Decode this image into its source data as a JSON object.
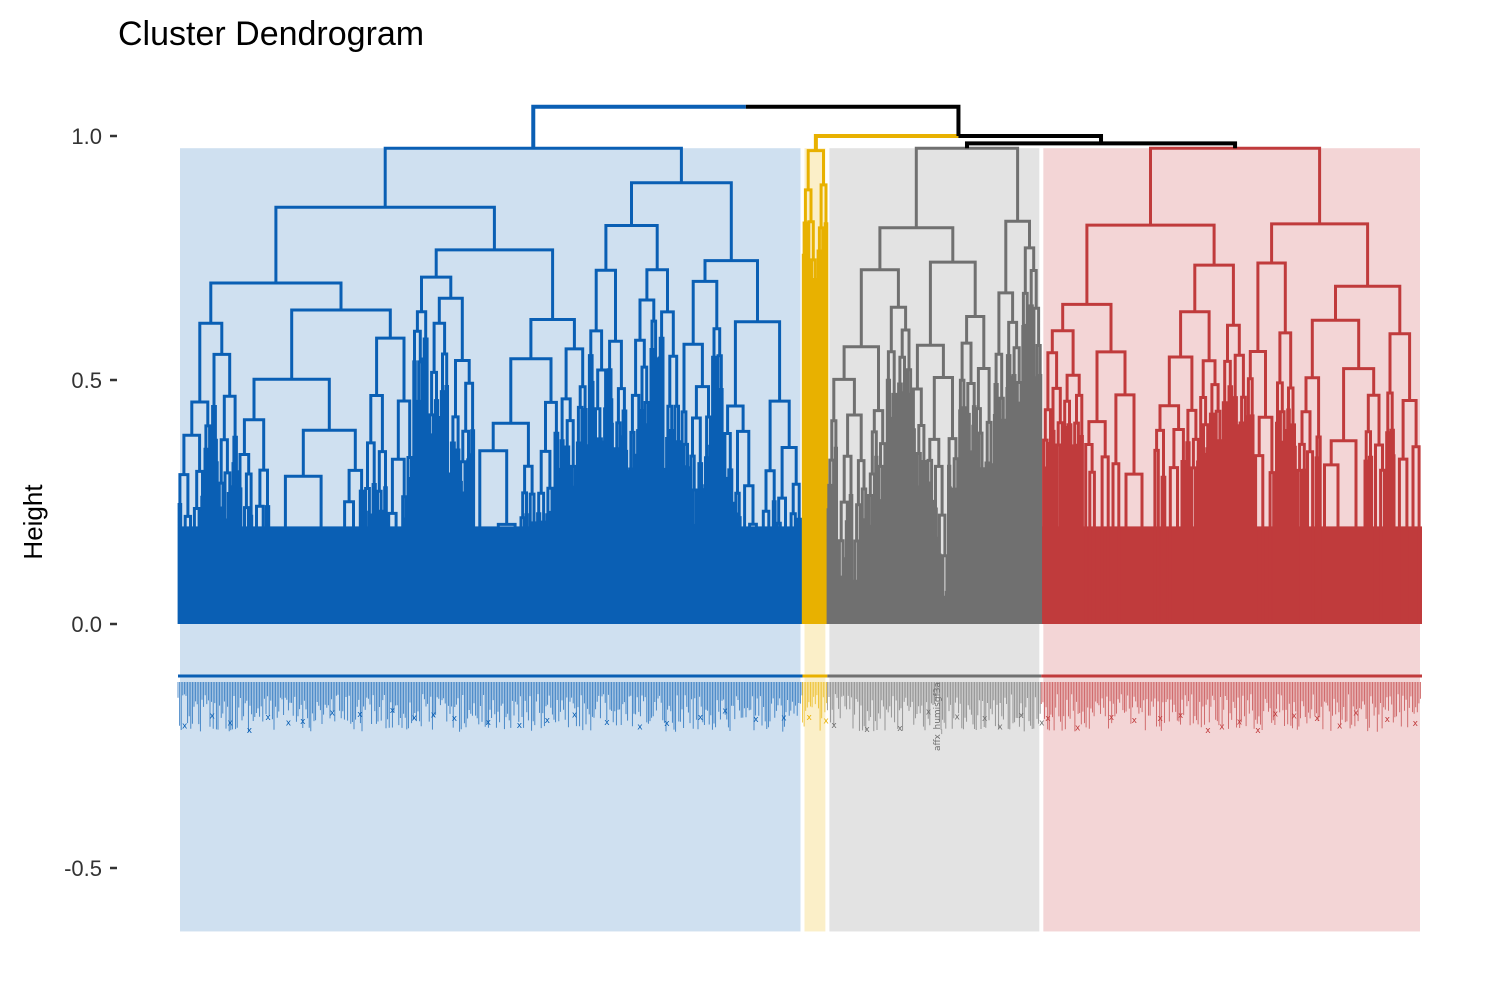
{
  "chart_data": {
    "type": "dendrogram",
    "title": "Cluster Dendrogram",
    "xlabel": "",
    "ylabel": "Height",
    "ylim": [
      -0.62,
      1.07
    ],
    "yticks": [
      1.0,
      0.5,
      0.0,
      -0.5
    ],
    "ytick_labels": [
      "1.0",
      "0.5",
      "0.0",
      "-0.5"
    ],
    "grid": false,
    "legend": false,
    "rectangles": true,
    "leaf_label_example": "affx_humisgf3a",
    "clusters": [
      {
        "color": "#0A5FB4",
        "fill": "#CFE0F0",
        "leaf_span": [
          0.0,
          0.502
        ],
        "merge_height": 0.975
      },
      {
        "color": "#E8B100",
        "fill": "#FBEFC8",
        "leaf_span": [
          0.502,
          0.522
        ],
        "merge_height": 0.97
      },
      {
        "color": "#707070",
        "fill": "#E3E3E3",
        "leaf_span": [
          0.522,
          0.694
        ],
        "merge_height": 0.975
      },
      {
        "color": "#C03B3C",
        "fill": "#F3D5D6",
        "leaf_span": [
          0.694,
          1.0
        ],
        "merge_height": 0.975
      }
    ],
    "top_merges": [
      {
        "height": 1.06,
        "joins": [
          "cluster-1",
          "rest"
        ]
      },
      {
        "height": 1.0,
        "joins": [
          "cluster-2",
          "cluster-3+4"
        ]
      },
      {
        "height": 0.985,
        "joins": [
          "cluster-3",
          "cluster-4"
        ]
      }
    ]
  }
}
